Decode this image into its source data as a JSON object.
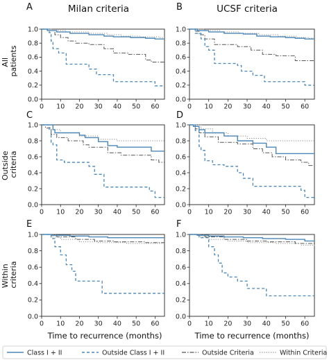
{
  "chart_data": {
    "type": "line",
    "layout": "3 rows x 2 columns, Kaplan-Meier step curves",
    "column_titles": [
      "Milan criteria",
      "UCSF criteria"
    ],
    "row_labels": [
      [
        "All",
        "patients"
      ],
      [
        "Outside",
        "criteria"
      ],
      [
        "Within",
        "criteria"
      ]
    ],
    "xlabel": "Time to recurrence (months)",
    "xlim": [
      0,
      65
    ],
    "ylim": [
      0,
      1.0
    ],
    "xticks": [
      0,
      10,
      20,
      30,
      40,
      50,
      60
    ],
    "yticks": [
      0.0,
      0.2,
      0.4,
      0.6,
      0.8,
      1.0
    ],
    "legend": {
      "position": "bottom",
      "entries": [
        {
          "label": "Class I + II",
          "series": "class12"
        },
        {
          "label": "Outside Class I + II",
          "series": "outside_class12"
        },
        {
          "label": "Outside Criteria",
          "series": "outside_criteria"
        },
        {
          "label": "Within Criteria",
          "series": "within_criteria"
        }
      ]
    },
    "styles": {
      "class12": {
        "color": "#4a86b6",
        "dash": "",
        "width": 1.4
      },
      "outside_class12": {
        "color": "#4a86b6",
        "dash": "4,3",
        "width": 1.3
      },
      "outside_criteria": {
        "color": "#555555",
        "dash": "6,2,1.5,2",
        "width": 1.0
      },
      "within_criteria": {
        "color": "#888888",
        "dash": "1.2,2",
        "width": 1.0
      }
    },
    "panels": [
      {
        "letter": "A",
        "series": {
          "class12": [
            [
              0,
              1.0
            ],
            [
              3,
              0.98
            ],
            [
              8,
              0.96
            ],
            [
              15,
              0.94
            ],
            [
              25,
              0.92
            ],
            [
              33,
              0.9
            ],
            [
              38,
              0.89
            ],
            [
              47,
              0.88
            ],
            [
              55,
              0.87
            ],
            [
              60,
              0.86
            ],
            [
              65,
              0.86
            ]
          ],
          "outside_class12": [
            [
              0,
              1.0
            ],
            [
              4,
              0.95
            ],
            [
              5,
              0.83
            ],
            [
              6,
              0.72
            ],
            [
              9,
              0.66
            ],
            [
              13,
              0.5
            ],
            [
              25,
              0.43
            ],
            [
              29,
              0.35
            ],
            [
              38,
              0.25
            ],
            [
              60,
              0.19
            ],
            [
              65,
              0.19
            ]
          ],
          "outside_criteria": [
            [
              0,
              1.0
            ],
            [
              3,
              0.98
            ],
            [
              7,
              0.92
            ],
            [
              10,
              0.88
            ],
            [
              14,
              0.83
            ],
            [
              18,
              0.8
            ],
            [
              25,
              0.78
            ],
            [
              33,
              0.72
            ],
            [
              38,
              0.66
            ],
            [
              46,
              0.64
            ],
            [
              55,
              0.56
            ],
            [
              58,
              0.53
            ],
            [
              65,
              0.53
            ]
          ],
          "within_criteria": [
            [
              0,
              1.0
            ],
            [
              5,
              0.98
            ],
            [
              13,
              0.96
            ],
            [
              25,
              0.94
            ],
            [
              35,
              0.92
            ],
            [
              42,
              0.9
            ],
            [
              52,
              0.89
            ],
            [
              62,
              0.88
            ],
            [
              65,
              0.88
            ]
          ]
        }
      },
      {
        "letter": "B",
        "series": {
          "class12": [
            [
              0,
              1.0
            ],
            [
              4,
              0.98
            ],
            [
              10,
              0.96
            ],
            [
              18,
              0.94
            ],
            [
              28,
              0.93
            ],
            [
              35,
              0.9
            ],
            [
              42,
              0.89
            ],
            [
              50,
              0.88
            ],
            [
              55,
              0.87
            ],
            [
              60,
              0.86
            ],
            [
              65,
              0.86
            ]
          ],
          "outside_class12": [
            [
              0,
              1.0
            ],
            [
              3,
              0.94
            ],
            [
              6,
              0.86
            ],
            [
              8,
              0.75
            ],
            [
              10,
              0.7
            ],
            [
              13,
              0.51
            ],
            [
              25,
              0.48
            ],
            [
              27,
              0.4
            ],
            [
              33,
              0.34
            ],
            [
              39,
              0.25
            ],
            [
              60,
              0.2
            ],
            [
              65,
              0.2
            ]
          ],
          "outside_criteria": [
            [
              0,
              1.0
            ],
            [
              3,
              0.97
            ],
            [
              5,
              0.92
            ],
            [
              8,
              0.86
            ],
            [
              13,
              0.78
            ],
            [
              25,
              0.75
            ],
            [
              32,
              0.7
            ],
            [
              38,
              0.64
            ],
            [
              45,
              0.62
            ],
            [
              55,
              0.55
            ],
            [
              65,
              0.55
            ]
          ],
          "within_criteria": [
            [
              0,
              1.0
            ],
            [
              8,
              0.98
            ],
            [
              16,
              0.96
            ],
            [
              26,
              0.94
            ],
            [
              36,
              0.92
            ],
            [
              46,
              0.9
            ],
            [
              56,
              0.88
            ],
            [
              62,
              0.87
            ],
            [
              65,
              0.87
            ]
          ]
        }
      },
      {
        "letter": "C",
        "series": {
          "class12": [
            [
              0,
              1.0
            ],
            [
              5,
              1.0
            ],
            [
              6,
              0.94
            ],
            [
              7,
              0.9
            ],
            [
              20,
              0.87
            ],
            [
              23,
              0.84
            ],
            [
              30,
              0.79
            ],
            [
              35,
              0.74
            ],
            [
              40,
              0.72
            ],
            [
              58,
              0.67
            ],
            [
              65,
              0.67
            ]
          ],
          "outside_class12": [
            [
              0,
              1.0
            ],
            [
              4,
              0.93
            ],
            [
              5,
              0.78
            ],
            [
              6,
              0.75
            ],
            [
              8,
              0.56
            ],
            [
              12,
              0.53
            ],
            [
              25,
              0.48
            ],
            [
              28,
              0.38
            ],
            [
              33,
              0.22
            ],
            [
              57,
              0.17
            ],
            [
              60,
              0.09
            ],
            [
              65,
              0.09
            ]
          ],
          "outside_criteria": [
            [
              0,
              1.0
            ],
            [
              2,
              0.96
            ],
            [
              5,
              0.88
            ],
            [
              8,
              0.84
            ],
            [
              14,
              0.8
            ],
            [
              22,
              0.75
            ],
            [
              25,
              0.72
            ],
            [
              35,
              0.65
            ],
            [
              42,
              0.62
            ],
            [
              58,
              0.56
            ],
            [
              62,
              0.53
            ],
            [
              65,
              0.53
            ]
          ],
          "within_criteria": [
            [
              0,
              1.0
            ],
            [
              2,
              1.0
            ],
            [
              6,
              0.94
            ],
            [
              10,
              0.9
            ],
            [
              20,
              0.86
            ],
            [
              30,
              0.82
            ],
            [
              40,
              0.8
            ],
            [
              65,
              0.8
            ]
          ]
        }
      },
      {
        "letter": "D",
        "series": {
          "class12": [
            [
              0,
              1.0
            ],
            [
              2,
              0.98
            ],
            [
              5,
              0.94
            ],
            [
              8,
              0.9
            ],
            [
              18,
              0.86
            ],
            [
              25,
              0.8
            ],
            [
              33,
              0.77
            ],
            [
              40,
              0.72
            ],
            [
              45,
              0.64
            ],
            [
              65,
              0.64
            ]
          ],
          "outside_class12": [
            [
              0,
              1.0
            ],
            [
              3,
              0.93
            ],
            [
              5,
              0.73
            ],
            [
              6,
              0.68
            ],
            [
              8,
              0.55
            ],
            [
              12,
              0.5
            ],
            [
              18,
              0.48
            ],
            [
              25,
              0.4
            ],
            [
              28,
              0.33
            ],
            [
              33,
              0.23
            ],
            [
              58,
              0.18
            ],
            [
              60,
              0.09
            ],
            [
              65,
              0.09
            ]
          ],
          "outside_criteria": [
            [
              0,
              1.0
            ],
            [
              3,
              0.95
            ],
            [
              5,
              0.9
            ],
            [
              8,
              0.85
            ],
            [
              15,
              0.78
            ],
            [
              25,
              0.76
            ],
            [
              33,
              0.7
            ],
            [
              38,
              0.65
            ],
            [
              43,
              0.6
            ],
            [
              50,
              0.56
            ],
            [
              58,
              0.53
            ],
            [
              62,
              0.49
            ],
            [
              65,
              0.49
            ]
          ],
          "within_criteria": [
            [
              0,
              1.0
            ],
            [
              2,
              1.0
            ],
            [
              6,
              0.95
            ],
            [
              12,
              0.9
            ],
            [
              20,
              0.86
            ],
            [
              30,
              0.83
            ],
            [
              40,
              0.8
            ],
            [
              65,
              0.8
            ]
          ]
        }
      },
      {
        "letter": "E",
        "series": {
          "class12": [
            [
              0,
              1.0
            ],
            [
              5,
              0.99
            ],
            [
              15,
              0.98
            ],
            [
              25,
              0.97
            ],
            [
              35,
              0.96
            ],
            [
              45,
              0.96
            ],
            [
              65,
              0.96
            ]
          ],
          "outside_class12": [
            [
              0,
              1.0
            ],
            [
              5,
              0.95
            ],
            [
              7,
              0.85
            ],
            [
              10,
              0.75
            ],
            [
              13,
              0.63
            ],
            [
              16,
              0.55
            ],
            [
              18,
              0.43
            ],
            [
              25,
              0.43
            ],
            [
              32,
              0.28
            ],
            [
              65,
              0.28
            ]
          ],
          "outside_criteria": [
            [
              0,
              1.0
            ],
            [
              8,
              0.97
            ],
            [
              18,
              0.94
            ],
            [
              28,
              0.92
            ],
            [
              38,
              0.91
            ],
            [
              55,
              0.9
            ],
            [
              65,
              0.9
            ]
          ],
          "within_criteria": [
            [
              0,
              1.0
            ],
            [
              5,
              0.97
            ],
            [
              10,
              0.94
            ],
            [
              20,
              0.91
            ],
            [
              30,
              0.9
            ],
            [
              45,
              0.89
            ],
            [
              65,
              0.88
            ]
          ]
        }
      },
      {
        "letter": "F",
        "series": {
          "class12": [
            [
              0,
              1.0
            ],
            [
              4,
              0.99
            ],
            [
              10,
              0.98
            ],
            [
              18,
              0.97
            ],
            [
              28,
              0.96
            ],
            [
              38,
              0.95
            ],
            [
              50,
              0.94
            ],
            [
              60,
              0.92
            ],
            [
              65,
              0.92
            ]
          ],
          "outside_class12": [
            [
              0,
              1.0
            ],
            [
              5,
              0.96
            ],
            [
              10,
              0.85
            ],
            [
              13,
              0.75
            ],
            [
              15,
              0.65
            ],
            [
              17,
              0.53
            ],
            [
              20,
              0.48
            ],
            [
              25,
              0.43
            ],
            [
              30,
              0.34
            ],
            [
              40,
              0.25
            ],
            [
              65,
              0.25
            ]
          ],
          "outside_criteria": [
            [
              0,
              1.0
            ],
            [
              8,
              0.97
            ],
            [
              18,
              0.94
            ],
            [
              30,
              0.92
            ],
            [
              40,
              0.91
            ],
            [
              55,
              0.89
            ],
            [
              65,
              0.89
            ]
          ],
          "within_criteria": [
            [
              0,
              1.0
            ],
            [
              5,
              0.97
            ],
            [
              10,
              0.94
            ],
            [
              20,
              0.92
            ],
            [
              30,
              0.9
            ],
            [
              45,
              0.89
            ],
            [
              58,
              0.87
            ],
            [
              65,
              0.86
            ]
          ]
        }
      }
    ]
  }
}
